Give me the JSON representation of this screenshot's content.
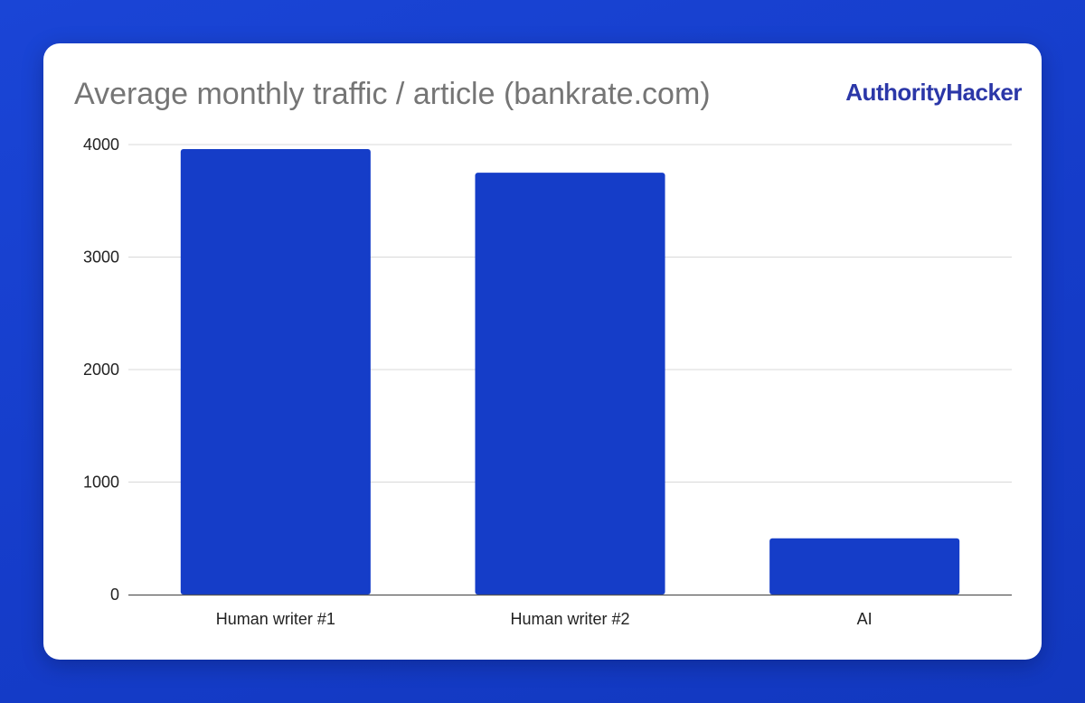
{
  "chart_data": {
    "type": "bar",
    "title": "Average monthly traffic / article (bankrate.com)",
    "xlabel": "",
    "ylabel": "",
    "categories": [
      "Human writer #1",
      "Human writer #2",
      "AI"
    ],
    "series": [
      {
        "values": [
          3960,
          3750,
          500
        ]
      }
    ],
    "ylim": [
      0,
      4000
    ],
    "yticks": [
      0,
      1000,
      2000,
      3000,
      4000
    ],
    "grid": true,
    "legend": "none",
    "bar_color": "#153dc8",
    "grid_color": "#d9d9d9",
    "axis_color": "#555555"
  },
  "brand": {
    "name": "AuthorityHacker",
    "color": "#2b37a8"
  }
}
